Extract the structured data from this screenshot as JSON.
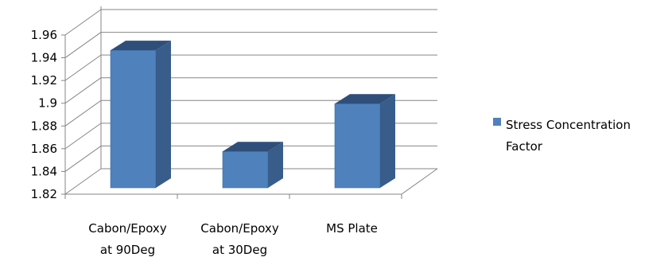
{
  "chart_data": {
    "type": "bar",
    "style": "3d-column",
    "title": "",
    "xlabel": "",
    "ylabel": "",
    "categories": [
      [
        "Cabon/Epoxy",
        "at 90Deg"
      ],
      [
        "Cabon/Epoxy",
        "at 30Deg"
      ],
      [
        "MS Plate"
      ]
    ],
    "series": [
      {
        "name": "Stress Concentration Factor",
        "values": [
          1.955,
          1.866,
          1.908
        ],
        "color": "#4F81BD"
      }
    ],
    "ylim": [
      1.82,
      1.96
    ],
    "yticks": [
      "1.82",
      "1.84",
      "1.86",
      "1.88",
      "1.9",
      "1.92",
      "1.94",
      "1.96"
    ],
    "grid": true,
    "legend": {
      "position": "right",
      "lines": [
        "Stress Concentration",
        "Factor"
      ]
    }
  }
}
